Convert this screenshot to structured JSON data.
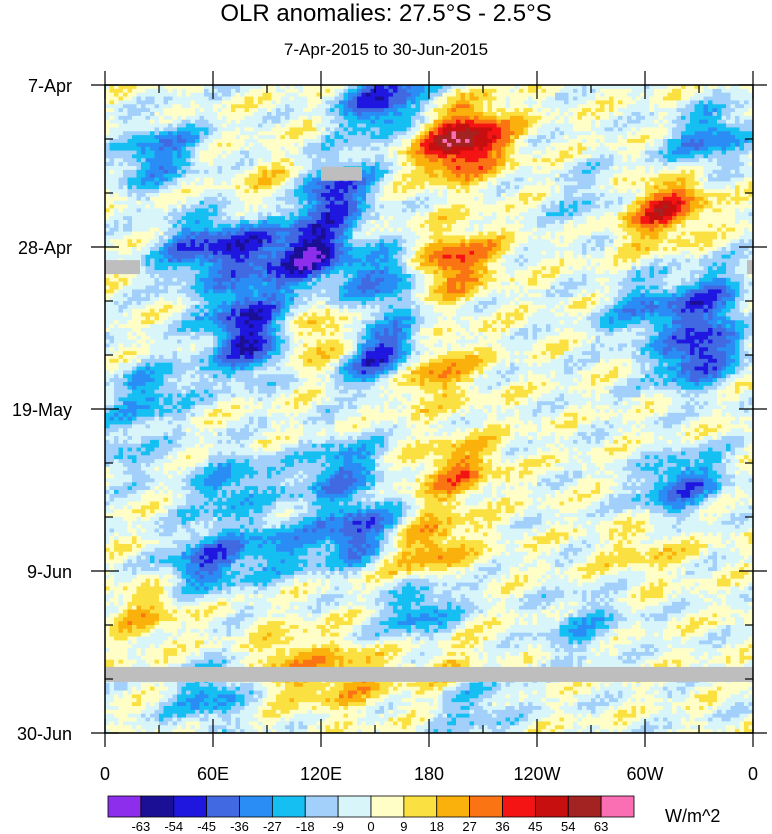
{
  "chart_data": {
    "type": "heatmap",
    "title": "OLR anomalies: 27.5°S - 2.5°S",
    "subtitle": "7-Apr-2015 to 30-Jun-2015",
    "x_ticks": [
      "0",
      "60E",
      "120E",
      "180",
      "120W",
      "60W",
      "0"
    ],
    "y_ticks": [
      "7-Apr",
      "28-Apr",
      "19-May",
      "9-Jun",
      "30-Jun"
    ],
    "colorbar": {
      "units": "W/m^2",
      "levels": [
        -63,
        -54,
        -45,
        -36,
        -27,
        -18,
        -9,
        0,
        9,
        18,
        27,
        36,
        45,
        54,
        63
      ],
      "colors": [
        "#8c2eeb",
        "#1b0f96",
        "#1f17e0",
        "#4169e1",
        "#2a8cf5",
        "#15bff2",
        "#a3d0fa",
        "#d8f6fa",
        "#fefec6",
        "#fae141",
        "#fab10c",
        "#fa7414",
        "#f51414",
        "#c80f0f",
        "#a32222",
        "#fa6eb4"
      ]
    },
    "missing_color": "#bebebe",
    "missing_bands": [
      {
        "date": "30-Apr",
        "lon_from": "0",
        "lon_to": "10E"
      },
      {
        "date": "30-Apr",
        "lon_from": "0",
        "lon_to": "0"
      },
      {
        "date": "18-Apr",
        "lon_from": "120E",
        "lon_to": "135E"
      },
      {
        "date": "21-Jun",
        "lon_from": "0",
        "lon_to": "0"
      }
    ],
    "anomaly_features": [
      {
        "lon": 100,
        "day": 14,
        "value": 20
      },
      {
        "lon": 195,
        "day": 7,
        "value": 40
      },
      {
        "lon": 205,
        "day": 8,
        "value": 28
      },
      {
        "lon": 310,
        "day": 16,
        "value": 42
      },
      {
        "lon": 175,
        "day": 24,
        "value": 28
      },
      {
        "lon": 195,
        "day": 23,
        "value": 30
      },
      {
        "lon": 115,
        "day": 33,
        "value": 28
      },
      {
        "lon": 180,
        "day": 37,
        "value": 32
      },
      {
        "lon": 195,
        "day": 50,
        "value": 28
      },
      {
        "lon": 180,
        "day": 60,
        "value": 30
      },
      {
        "lon": 100,
        "day": 75,
        "value": 22
      },
      {
        "lon": 135,
        "day": 77,
        "value": 22
      },
      {
        "lon": 25,
        "day": 68,
        "value": 18
      },
      {
        "lon": 360,
        "day": 28,
        "value": 18
      },
      {
        "lon": 300,
        "day": 60,
        "value": 14
      },
      {
        "lon": 190,
        "day": 76,
        "value": 15
      },
      {
        "lon": 125,
        "day": 14,
        "value": -55
      },
      {
        "lon": 115,
        "day": 22,
        "value": -58
      },
      {
        "lon": 155,
        "day": 2,
        "value": -52
      },
      {
        "lon": 160,
        "day": 25,
        "value": -55
      },
      {
        "lon": 155,
        "day": 35,
        "value": -52
      },
      {
        "lon": 85,
        "day": 34,
        "value": -48
      },
      {
        "lon": 80,
        "day": 21,
        "value": -38
      },
      {
        "lon": 50,
        "day": 21,
        "value": -38
      },
      {
        "lon": 75,
        "day": 29,
        "value": -38
      },
      {
        "lon": 30,
        "day": 9,
        "value": -35
      },
      {
        "lon": 330,
        "day": 35,
        "value": -50
      },
      {
        "lon": 340,
        "day": 28,
        "value": -45
      },
      {
        "lon": 300,
        "day": 29,
        "value": -30
      },
      {
        "lon": 335,
        "day": 7,
        "value": -35
      },
      {
        "lon": 320,
        "day": 52,
        "value": -40
      },
      {
        "lon": 130,
        "day": 50,
        "value": -35
      },
      {
        "lon": 95,
        "day": 60,
        "value": -25
      },
      {
        "lon": 55,
        "day": 62,
        "value": -40
      },
      {
        "lon": 70,
        "day": 52,
        "value": -30
      },
      {
        "lon": 140,
        "day": 58,
        "value": -45
      },
      {
        "lon": 175,
        "day": 68,
        "value": -30
      },
      {
        "lon": 265,
        "day": 70,
        "value": -20
      },
      {
        "lon": 205,
        "day": 80,
        "value": -22
      },
      {
        "lon": 60,
        "day": 79,
        "value": -30
      },
      {
        "lon": 10,
        "day": 48,
        "value": -15
      },
      {
        "lon": 25,
        "day": 40,
        "value": -28
      },
      {
        "lon": 270,
        "day": 15,
        "value": -15
      }
    ],
    "xlabel": "",
    "ylabel": "",
    "x_range": [
      0,
      360
    ],
    "y_range": [
      "7-Apr-2015",
      "30-Jun-2015"
    ]
  }
}
